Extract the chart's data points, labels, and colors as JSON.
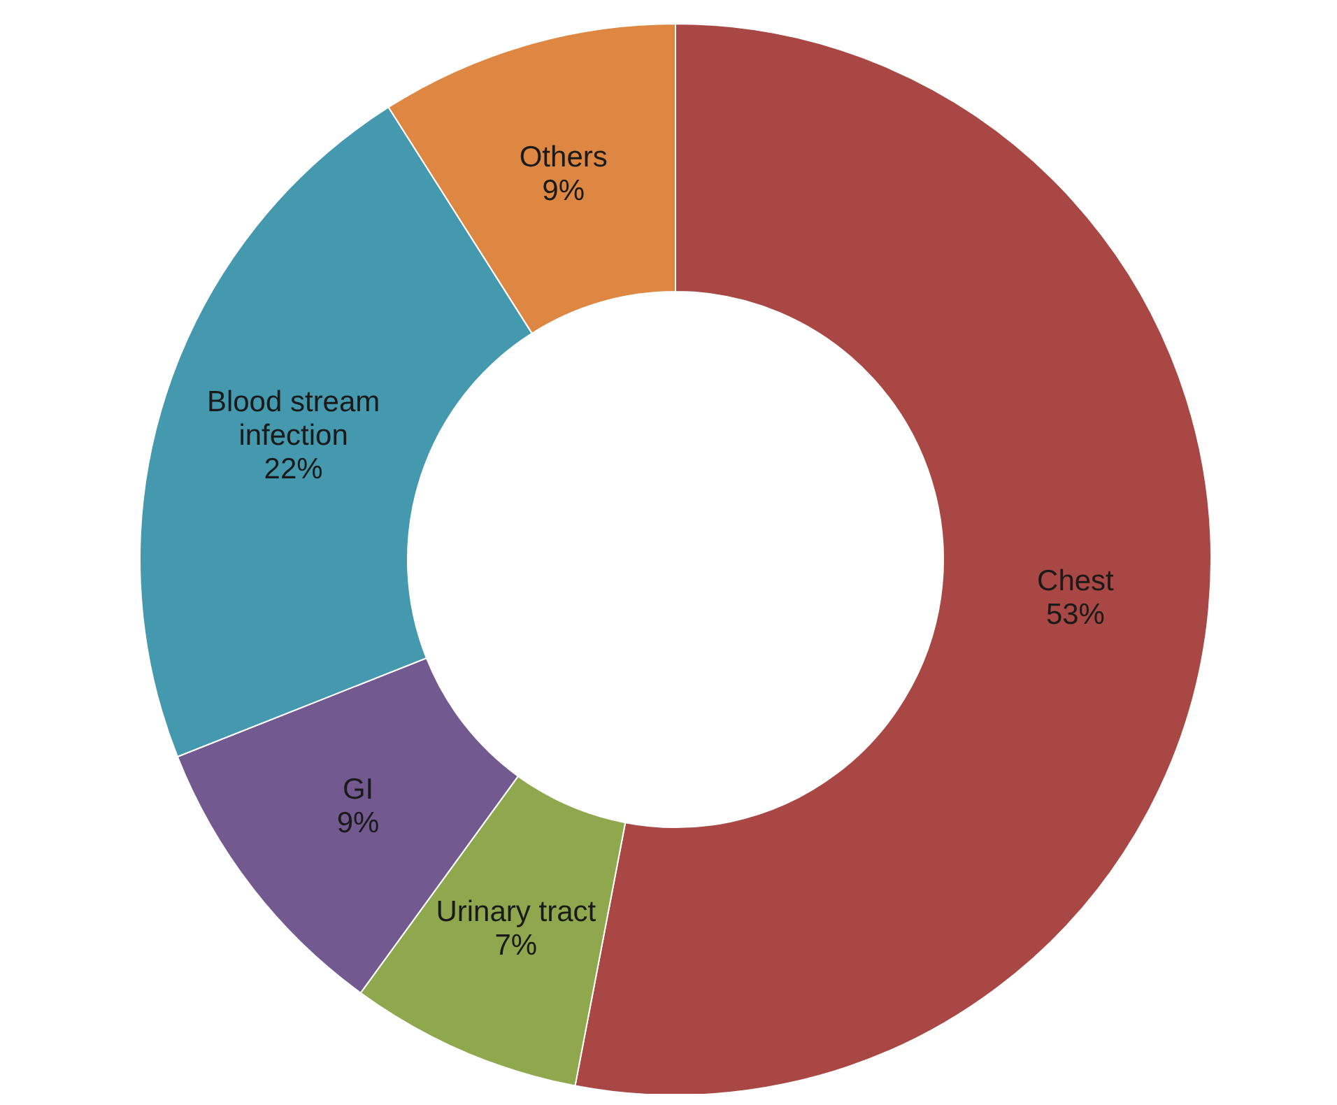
{
  "chart_data": {
    "type": "donut",
    "categories": [
      "Chest",
      "Urinary tract",
      "GI",
      "Blood stream infection",
      "Others"
    ],
    "values": [
      53,
      7,
      9,
      22,
      9
    ],
    "colors": [
      "#a84744",
      "#8fa84e",
      "#725a90",
      "#4499af",
      "#dd8742"
    ],
    "value_labels": [
      "53%",
      "7%",
      "9%",
      "22%",
      "9%"
    ]
  }
}
